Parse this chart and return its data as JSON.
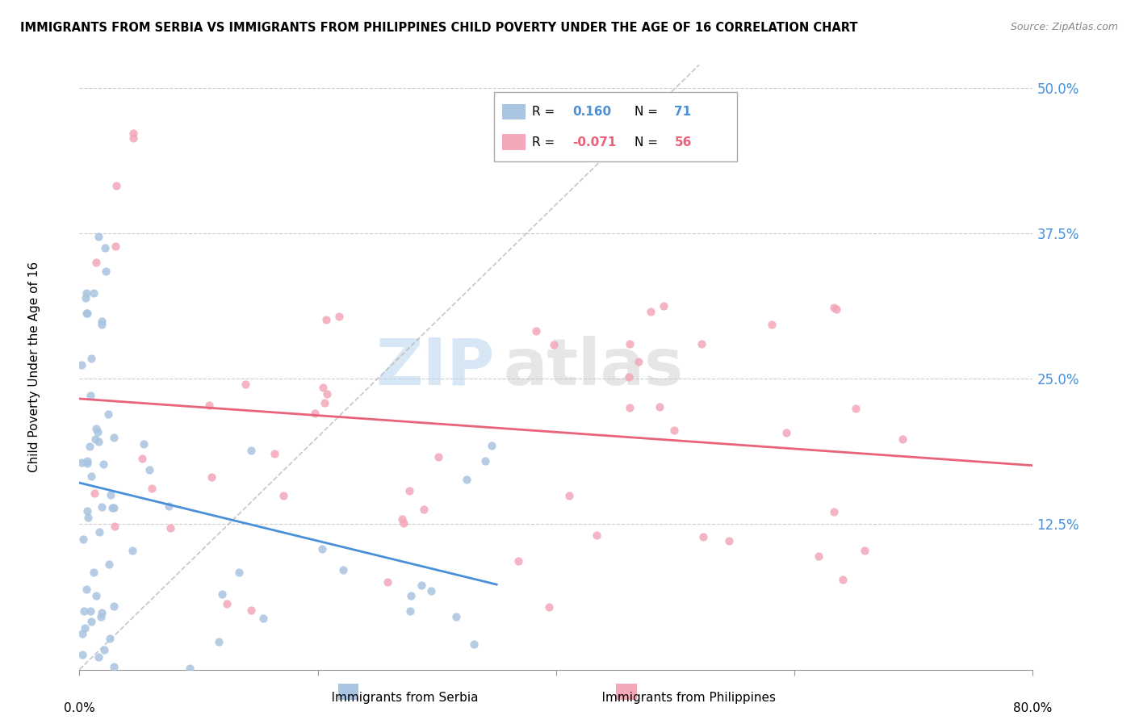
{
  "title": "IMMIGRANTS FROM SERBIA VS IMMIGRANTS FROM PHILIPPINES CHILD POVERTY UNDER THE AGE OF 16 CORRELATION CHART",
  "source": "Source: ZipAtlas.com",
  "ylabel": "Child Poverty Under the Age of 16",
  "yticks": [
    0.0,
    0.125,
    0.25,
    0.375,
    0.5
  ],
  "ytick_labels": [
    "",
    "12.5%",
    "25.0%",
    "37.5%",
    "50.0%"
  ],
  "xlim": [
    0.0,
    0.8
  ],
  "ylim": [
    0.0,
    0.52
  ],
  "legend_R_serbia": "0.160",
  "legend_N_serbia": "71",
  "legend_R_philippines": "-0.071",
  "legend_N_philippines": "56",
  "color_serbia": "#a8c4e0",
  "color_philippines": "#f4a7b9",
  "trendline_serbia_color": "#4a90d9",
  "trendline_philippines_color": "#e8627a",
  "trendline_dashed_color": "#b8b8b8",
  "watermark_zip": "ZIP",
  "watermark_atlas": "atlas"
}
